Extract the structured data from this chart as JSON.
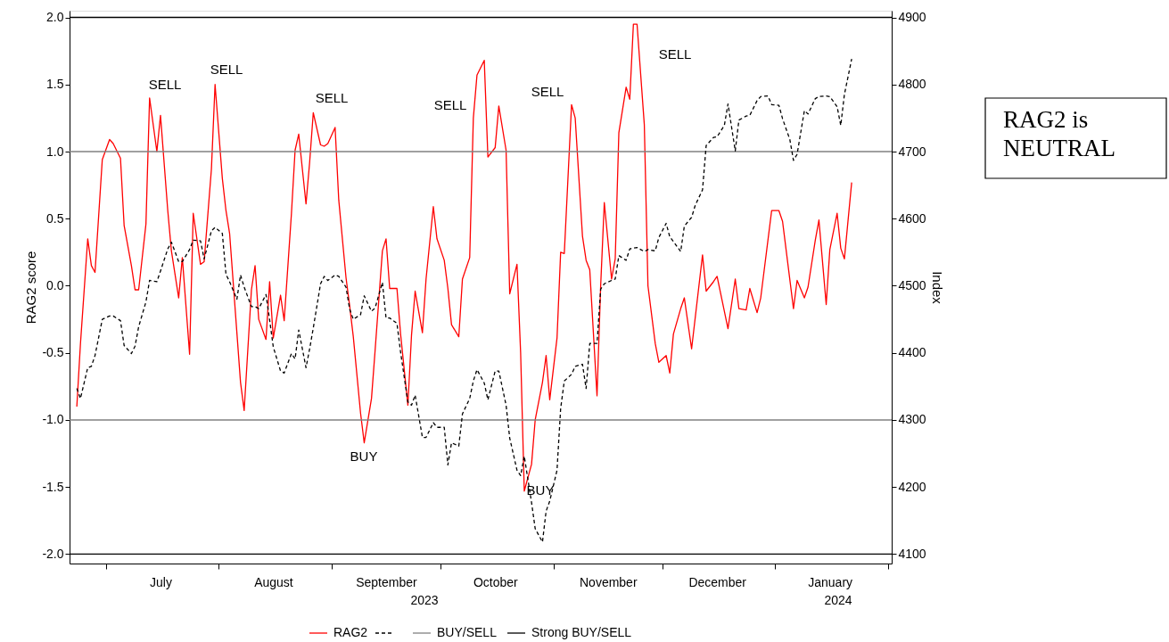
{
  "chart_data": {
    "type": "line",
    "xlabel": null,
    "ylabel": "RAG2 score",
    "y2label": "Index",
    "xlim": [
      "2023-06-21",
      "2024-02-02"
    ],
    "xticks": [
      {
        "value": "2023-07-01",
        "label": null
      },
      {
        "value": "2023-07-16",
        "label": "July"
      },
      {
        "value": "2023-08-01",
        "label": null
      },
      {
        "value": "2023-08-16",
        "label": "August"
      },
      {
        "value": "2023-09-01",
        "label": null
      },
      {
        "value": "2023-09-16",
        "label": "September"
      },
      {
        "value": "2023-10-01",
        "label": null
      },
      {
        "value": "2023-10-16",
        "label": "October"
      },
      {
        "value": "2023-11-01",
        "label": null
      },
      {
        "value": "2023-11-16",
        "label": "November"
      },
      {
        "value": "2023-12-01",
        "label": null
      },
      {
        "value": "2023-12-16",
        "label": "December"
      },
      {
        "value": "2024-01-01",
        "label": null
      },
      {
        "value": "2024-01-16",
        "label": "January"
      },
      {
        "value": "2024-02-01",
        "label": null
      }
    ],
    "ylim": [
      -2.07,
      2.05
    ],
    "yticks": [
      {
        "value": -2,
        "label": "-2.0"
      },
      {
        "value": -1.5,
        "label": "-1.5"
      },
      {
        "value": -1,
        "label": "-1.0"
      },
      {
        "value": -0.5,
        "label": "-0.5"
      },
      {
        "value": 0,
        "label": "0.0"
      },
      {
        "value": 0.5,
        "label": "0.5"
      },
      {
        "value": 1,
        "label": "1.0"
      },
      {
        "value": 1.5,
        "label": "1.5"
      },
      {
        "value": 2,
        "label": "2.0"
      }
    ],
    "y2lim": [
      4086,
      4910
    ],
    "y2ticks": [
      4100,
      4200,
      4300,
      4400,
      4500,
      4600,
      4700,
      4800,
      4900
    ],
    "grid": false,
    "legend": "bottom",
    "marker": "none",
    "series": [
      {
        "name": "RAG2",
        "color": "#ff0000",
        "line_style": "solid",
        "x": [
          "2023-06-23",
          "2023-06-24",
          "2023-06-26",
          "2023-06-27",
          "2023-06-28",
          "2023-06-30",
          "2023-07-02",
          "2023-07-03",
          "2023-07-05",
          "2023-07-06",
          "2023-07-08",
          "2023-07-09",
          "2023-07-10",
          "2023-07-12",
          "2023-07-13",
          "2023-07-15",
          "2023-07-16",
          "2023-07-18",
          "2023-07-19",
          "2023-07-21",
          "2023-07-22",
          "2023-07-24",
          "2023-07-25",
          "2023-07-27",
          "2023-07-28",
          "2023-07-30",
          "2023-07-31",
          "2023-08-02",
          "2023-08-03",
          "2023-08-04",
          "2023-08-07",
          "2023-08-08",
          "2023-08-10",
          "2023-08-11",
          "2023-08-12",
          "2023-08-14",
          "2023-08-15",
          "2023-08-16",
          "2023-08-18",
          "2023-08-19",
          "2023-08-21",
          "2023-08-22",
          "2023-08-23",
          "2023-08-25",
          "2023-08-26",
          "2023-08-27",
          "2023-08-29",
          "2023-08-30",
          "2023-08-31",
          "2023-09-02",
          "2023-09-03",
          "2023-09-05",
          "2023-09-06",
          "2023-09-07",
          "2023-09-09",
          "2023-09-10",
          "2023-09-12",
          "2023-09-13",
          "2023-09-15",
          "2023-09-16",
          "2023-09-17",
          "2023-09-19",
          "2023-09-20",
          "2023-09-22",
          "2023-09-23",
          "2023-09-24",
          "2023-09-26",
          "2023-09-27",
          "2023-09-29",
          "2023-09-30",
          "2023-10-02",
          "2023-10-03",
          "2023-10-04",
          "2023-10-06",
          "2023-10-07",
          "2023-10-09",
          "2023-10-10",
          "2023-10-11",
          "2023-10-13",
          "2023-10-14",
          "2023-10-16",
          "2023-10-17",
          "2023-10-19",
          "2023-10-20",
          "2023-10-22",
          "2023-10-23",
          "2023-10-24",
          "2023-10-26",
          "2023-10-27",
          "2023-10-29",
          "2023-10-30",
          "2023-10-31",
          "2023-11-02",
          "2023-11-03",
          "2023-11-04",
          "2023-11-06",
          "2023-11-07",
          "2023-11-09",
          "2023-11-10",
          "2023-11-11",
          "2023-11-13",
          "2023-11-14",
          "2023-11-15",
          "2023-11-17",
          "2023-11-18",
          "2023-11-19",
          "2023-11-21",
          "2023-11-22",
          "2023-11-23",
          "2023-11-24",
          "2023-11-26",
          "2023-11-27",
          "2023-11-29",
          "2023-11-30",
          "2023-12-02",
          "2023-12-03",
          "2023-12-04",
          "2023-12-06",
          "2023-12-07",
          "2023-12-09",
          "2023-12-12",
          "2023-12-13",
          "2023-12-15",
          "2023-12-16",
          "2023-12-19",
          "2023-12-21",
          "2023-12-22",
          "2023-12-24",
          "2023-12-25",
          "2023-12-27",
          "2023-12-28",
          "2023-12-31",
          "2024-01-02",
          "2024-01-03",
          "2024-01-06",
          "2024-01-07",
          "2024-01-09",
          "2024-01-10",
          "2024-01-12",
          "2024-01-13",
          "2024-01-15",
          "2024-01-16",
          "2024-01-18",
          "2024-01-19",
          "2024-01-20",
          "2024-01-22"
        ],
        "values": [
          -0.9,
          -0.43,
          0.35,
          0.15,
          0.1,
          0.94,
          1.09,
          1.06,
          0.95,
          0.45,
          0.15,
          -0.03,
          -0.03,
          0.46,
          1.4,
          1.0,
          1.27,
          0.56,
          0.26,
          -0.09,
          0.21,
          -0.51,
          0.54,
          0.16,
          0.18,
          0.87,
          1.5,
          0.8,
          0.56,
          0.39,
          -0.72,
          -0.93,
          -0.03,
          0.15,
          -0.25,
          -0.4,
          0.03,
          -0.39,
          -0.07,
          -0.26,
          0.54,
          1.01,
          1.13,
          0.61,
          0.92,
          1.29,
          1.05,
          1.04,
          1.06,
          1.18,
          0.64,
          0.06,
          -0.15,
          -0.38,
          -0.95,
          -1.17,
          -0.84,
          -0.48,
          0.26,
          0.35,
          -0.02,
          -0.02,
          -0.36,
          -0.89,
          -0.37,
          -0.04,
          -0.35,
          0.05,
          0.59,
          0.35,
          0.19,
          -0.02,
          -0.29,
          -0.38,
          0.05,
          0.21,
          1.25,
          1.57,
          1.68,
          0.96,
          1.03,
          1.34,
          1.01,
          -0.06,
          0.16,
          -0.5,
          -1.53,
          -1.33,
          -1.0,
          -0.72,
          -0.52,
          -0.85,
          -0.39,
          0.25,
          0.24,
          1.35,
          1.25,
          0.37,
          0.19,
          0.12,
          -0.82,
          0.0,
          0.62,
          0.05,
          0.2,
          1.14,
          1.48,
          1.39,
          1.95,
          1.95,
          1.2,
          0.0,
          -0.43,
          -0.57,
          -0.52,
          -0.65,
          -0.36,
          -0.17,
          -0.09,
          -0.47,
          0.23,
          -0.04,
          0.03,
          0.07,
          -0.32,
          0.05,
          -0.17,
          -0.18,
          -0.02,
          -0.2,
          -0.09,
          0.56,
          0.56,
          0.48,
          -0.17,
          0.04,
          -0.09,
          -0.01,
          0.34,
          0.49,
          -0.14,
          0.27,
          0.54,
          0.28,
          0.2,
          0.77
        ]
      },
      {
        "color": "#000000",
        "line_style": "dashed",
        "axis": "y2",
        "x": [
          "2023-06-23",
          "2023-06-24",
          "2023-06-26",
          "2023-06-27",
          "2023-06-28",
          "2023-06-30",
          "2023-07-02",
          "2023-07-03",
          "2023-07-05",
          "2023-07-06",
          "2023-07-08",
          "2023-07-09",
          "2023-07-10",
          "2023-07-12",
          "2023-07-13",
          "2023-07-15",
          "2023-07-16",
          "2023-07-18",
          "2023-07-19",
          "2023-07-21",
          "2023-07-22",
          "2023-07-24",
          "2023-07-25",
          "2023-07-27",
          "2023-07-28",
          "2023-07-30",
          "2023-07-31",
          "2023-08-02",
          "2023-08-03",
          "2023-08-04",
          "2023-08-06",
          "2023-08-07",
          "2023-08-08",
          "2023-08-10",
          "2023-08-11",
          "2023-08-12",
          "2023-08-14",
          "2023-08-15",
          "2023-08-16",
          "2023-08-18",
          "2023-08-19",
          "2023-08-21",
          "2023-08-22",
          "2023-08-23",
          "2023-08-25",
          "2023-08-26",
          "2023-08-27",
          "2023-08-29",
          "2023-08-30",
          "2023-08-31",
          "2023-09-02",
          "2023-09-03",
          "2023-09-05",
          "2023-09-06",
          "2023-09-07",
          "2023-09-09",
          "2023-09-10",
          "2023-09-12",
          "2023-09-13",
          "2023-09-15",
          "2023-09-16",
          "2023-09-17",
          "2023-09-19",
          "2023-09-20",
          "2023-09-22",
          "2023-09-23",
          "2023-09-24",
          "2023-09-26",
          "2023-09-27",
          "2023-09-29",
          "2023-09-30",
          "2023-10-02",
          "2023-10-03",
          "2023-10-04",
          "2023-10-06",
          "2023-10-07",
          "2023-10-09",
          "2023-10-10",
          "2023-10-11",
          "2023-10-13",
          "2023-10-14",
          "2023-10-16",
          "2023-10-17",
          "2023-10-19",
          "2023-10-20",
          "2023-10-22",
          "2023-10-23",
          "2023-10-24",
          "2023-10-26",
          "2023-10-27",
          "2023-10-29",
          "2023-10-30",
          "2023-10-31",
          "2023-11-02",
          "2023-11-03",
          "2023-11-04",
          "2023-11-06",
          "2023-11-07",
          "2023-11-09",
          "2023-11-10",
          "2023-11-11",
          "2023-11-13",
          "2023-11-14",
          "2023-11-15",
          "2023-11-17",
          "2023-11-18",
          "2023-11-19",
          "2023-11-21",
          "2023-11-22",
          "2023-11-23",
          "2023-11-24",
          "2023-11-26",
          "2023-11-27",
          "2023-11-29",
          "2023-11-30",
          "2023-12-02",
          "2023-12-03",
          "2023-12-04",
          "2023-12-06",
          "2023-12-07",
          "2023-12-09",
          "2023-12-10",
          "2023-12-12",
          "2023-12-13",
          "2023-12-15",
          "2023-12-16",
          "2023-12-18",
          "2023-12-19",
          "2023-12-21",
          "2023-12-22",
          "2023-12-24",
          "2023-12-25",
          "2023-12-27",
          "2023-12-28",
          "2023-12-30",
          "2023-12-31",
          "2024-01-02",
          "2024-01-03",
          "2024-01-05",
          "2024-01-06",
          "2024-01-07",
          "2024-01-09",
          "2024-01-10",
          "2024-01-12",
          "2024-01-13",
          "2024-01-15",
          "2024-01-16",
          "2024-01-18",
          "2024-01-19",
          "2024-01-20",
          "2024-01-22"
        ],
        "values": [
          4347,
          4332,
          4378,
          4380,
          4396,
          4450,
          4455,
          4455,
          4448,
          4411,
          4399,
          4410,
          4439,
          4476,
          4508,
          4506,
          4522,
          4555,
          4565,
          4536,
          4536,
          4554,
          4568,
          4567,
          4540,
          4582,
          4587,
          4578,
          4517,
          4506,
          4480,
          4516,
          4498,
          4469,
          4469,
          4466,
          4487,
          4449,
          4409,
          4373,
          4370,
          4399,
          4391,
          4434,
          4378,
          4406,
          4437,
          4503,
          4514,
          4508,
          4516,
          4514,
          4498,
          4465,
          4450,
          4457,
          4485,
          4462,
          4467,
          4505,
          4452,
          4452,
          4444,
          4401,
          4327,
          4322,
          4337,
          4274,
          4274,
          4296,
          4289,
          4289,
          4233,
          4266,
          4261,
          4309,
          4332,
          4358,
          4375,
          4355,
          4330,
          4373,
          4373,
          4322,
          4273,
          4225,
          4217,
          4246,
          4177,
          4138,
          4118,
          4164,
          4179,
          4225,
          4317,
          4358,
          4368,
          4380,
          4383,
          4347,
          4414,
          4414,
          4495,
          4503,
          4508,
          4510,
          4545,
          4538,
          4555,
          4556,
          4557,
          4551,
          4554,
          4552,
          4572,
          4593,
          4573,
          4566,
          4551,
          4589,
          4602,
          4620,
          4643,
          4709,
          4721,
          4722,
          4739,
          4771,
          4701,
          4747,
          4753,
          4754,
          4776,
          4782,
          4783,
          4770,
          4769,
          4749,
          4718,
          4687,
          4696,
          4761,
          4756,
          4779,
          4782,
          4783,
          4782,
          4767,
          4739,
          4785,
          4838
        ]
      }
    ],
    "ref_lines": [
      {
        "axis": "y",
        "value": 1,
        "label": "BUY/SELL",
        "color": "#808080"
      },
      {
        "axis": "y",
        "value": -1,
        "color": "#808080"
      },
      {
        "axis": "y",
        "value": 2,
        "label": "Strong BUY/SELL",
        "color": "#000000"
      },
      {
        "axis": "y",
        "value": -2,
        "color": "#000000"
      }
    ],
    "annotations": [
      "SELL",
      "SELL",
      "SELL",
      "BUY",
      "SELL",
      "SELL",
      "BUY",
      "SELL",
      "2023",
      "2024",
      "RAG2 is\nNEUTRAL"
    ]
  }
}
